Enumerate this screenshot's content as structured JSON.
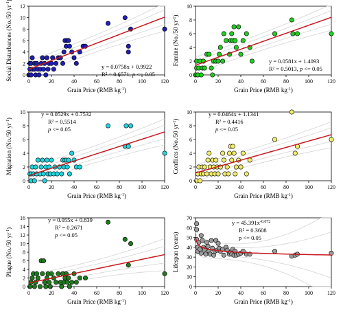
{
  "x_unit_sup": "-1",
  "y_unit_sup": "-1",
  "chart_data": [
    {
      "type": "scatter",
      "xlabel": "Grain Price (RMB kg",
      "ylabel": "Social Disturbances (No./50 yr",
      "xlim": [
        0,
        120
      ],
      "ylim": [
        0,
        12
      ],
      "xticks": [
        0,
        20,
        40,
        60,
        80,
        100,
        120
      ],
      "yticks": [
        0,
        2,
        4,
        6,
        8,
        10,
        12
      ],
      "color": "#1f1fb0",
      "fit": {
        "type": "linear",
        "slope": 0.0758,
        "intercept": 0.9922
      },
      "equation": [
        "y = 0.0758x + 0.9922",
        "R² = 0.6571, p <= 0.05"
      ],
      "points": [
        [
          0,
          0
        ],
        [
          1,
          1
        ],
        [
          1,
          2
        ],
        [
          2,
          0
        ],
        [
          2,
          2
        ],
        [
          3,
          1
        ],
        [
          3,
          3
        ],
        [
          5,
          1
        ],
        [
          5,
          2
        ],
        [
          6,
          0
        ],
        [
          7,
          2
        ],
        [
          8,
          1
        ],
        [
          9,
          0
        ],
        [
          10,
          1
        ],
        [
          11,
          2
        ],
        [
          12,
          3
        ],
        [
          13,
          1
        ],
        [
          14,
          2
        ],
        [
          15,
          0
        ],
        [
          16,
          3
        ],
        [
          17,
          1
        ],
        [
          18,
          2
        ],
        [
          20,
          2
        ],
        [
          21,
          3
        ],
        [
          22,
          1
        ],
        [
          24,
          2
        ],
        [
          26,
          3
        ],
        [
          28,
          3
        ],
        [
          30,
          2
        ],
        [
          31,
          4
        ],
        [
          32,
          6
        ],
        [
          33,
          5
        ],
        [
          34,
          6
        ],
        [
          35,
          6
        ],
        [
          36,
          5
        ],
        [
          38,
          4
        ],
        [
          40,
          3
        ],
        [
          42,
          2
        ],
        [
          45,
          4
        ],
        [
          48,
          5
        ],
        [
          50,
          5
        ],
        [
          70,
          9
        ],
        [
          85,
          10
        ],
        [
          90,
          8
        ],
        [
          88,
          4
        ],
        [
          88,
          5
        ],
        [
          120,
          8
        ]
      ]
    },
    {
      "type": "scatter",
      "xlabel": "Grain Price (RMB kg",
      "ylabel": "Famine (No./50 yr",
      "xlim": [
        0,
        120
      ],
      "ylim": [
        0,
        10
      ],
      "xticks": [
        0,
        20,
        40,
        60,
        80,
        100,
        120
      ],
      "yticks": [
        0,
        2,
        4,
        6,
        8,
        10
      ],
      "color": "#22cc22",
      "fit": {
        "type": "linear",
        "slope": 0.0581,
        "intercept": 1.4093
      },
      "equation": [
        "y = 0.0581x + 1.4093",
        "R² = 0.5013, p <= 0.05"
      ],
      "points": [
        [
          0,
          0
        ],
        [
          1,
          1
        ],
        [
          1,
          2
        ],
        [
          2,
          0
        ],
        [
          3,
          1
        ],
        [
          4,
          2
        ],
        [
          5,
          0
        ],
        [
          6,
          1
        ],
        [
          7,
          2
        ],
        [
          8,
          1
        ],
        [
          10,
          3
        ],
        [
          12,
          3
        ],
        [
          14,
          1
        ],
        [
          15,
          0
        ],
        [
          16,
          2
        ],
        [
          18,
          2
        ],
        [
          20,
          2
        ],
        [
          21,
          3
        ],
        [
          22,
          4
        ],
        [
          24,
          2
        ],
        [
          25,
          6
        ],
        [
          27,
          5
        ],
        [
          30,
          3
        ],
        [
          31,
          5
        ],
        [
          32,
          6
        ],
        [
          33,
          5
        ],
        [
          34,
          7
        ],
        [
          35,
          5
        ],
        [
          36,
          4
        ],
        [
          38,
          7
        ],
        [
          40,
          3
        ],
        [
          42,
          5
        ],
        [
          45,
          6
        ],
        [
          48,
          4
        ],
        [
          50,
          2
        ],
        [
          70,
          6
        ],
        [
          85,
          8
        ],
        [
          86,
          6
        ],
        [
          90,
          6
        ],
        [
          120,
          6
        ]
      ]
    },
    {
      "type": "scatter",
      "xlabel": "Grain Price (RMB kg",
      "ylabel": "Migration (No./50 yr",
      "xlim": [
        0,
        120
      ],
      "ylim": [
        0,
        10
      ],
      "xticks": [
        0,
        20,
        40,
        60,
        80,
        100,
        120
      ],
      "yticks": [
        0,
        2,
        4,
        6,
        8,
        10
      ],
      "color": "#22d4dc",
      "fit": {
        "type": "linear",
        "slope": 0.0529,
        "intercept": 0.7532
      },
      "equation": [
        "y = 0.0529x + 0.7532",
        "R² = 0.5514",
        "p <= 0.05"
      ],
      "points": [
        [
          1,
          1
        ],
        [
          2,
          0
        ],
        [
          2,
          1
        ],
        [
          3,
          2
        ],
        [
          4,
          1
        ],
        [
          5,
          0
        ],
        [
          6,
          2
        ],
        [
          7,
          1
        ],
        [
          8,
          3
        ],
        [
          10,
          1
        ],
        [
          11,
          2
        ],
        [
          12,
          3
        ],
        [
          13,
          1
        ],
        [
          14,
          0
        ],
        [
          15,
          2
        ],
        [
          16,
          3
        ],
        [
          17,
          1
        ],
        [
          18,
          2
        ],
        [
          19,
          1
        ],
        [
          20,
          3
        ],
        [
          22,
          1
        ],
        [
          23,
          2
        ],
        [
          25,
          1
        ],
        [
          27,
          2
        ],
        [
          29,
          1
        ],
        [
          30,
          3
        ],
        [
          31,
          2
        ],
        [
          32,
          3
        ],
        [
          33,
          3
        ],
        [
          34,
          2
        ],
        [
          35,
          3
        ],
        [
          36,
          1
        ],
        [
          38,
          4
        ],
        [
          40,
          3
        ],
        [
          42,
          2
        ],
        [
          45,
          2
        ],
        [
          70,
          8
        ],
        [
          85,
          5
        ],
        [
          86,
          8
        ],
        [
          88,
          5
        ],
        [
          90,
          8
        ],
        [
          120,
          4
        ]
      ]
    },
    {
      "type": "scatter",
      "xlabel": "Grain Price (RMB kg",
      "ylabel": "Conflicts (No./50 yr",
      "xlim": [
        0,
        120
      ],
      "ylim": [
        0,
        10
      ],
      "xticks": [
        0,
        20,
        40,
        60,
        80,
        100,
        120
      ],
      "yticks": [
        0,
        2,
        4,
        6,
        8,
        10
      ],
      "color": "#f2ec6a",
      "fit": {
        "type": "linear",
        "slope": 0.0464,
        "intercept": 1.1341
      },
      "equation": [
        "y = 0.0464x + 1.1341",
        "R² = 0.4416",
        "p <= 0.05"
      ],
      "points": [
        [
          1,
          0
        ],
        [
          2,
          1
        ],
        [
          3,
          2
        ],
        [
          4,
          0
        ],
        [
          5,
          1
        ],
        [
          6,
          2
        ],
        [
          7,
          1
        ],
        [
          8,
          2
        ],
        [
          10,
          1
        ],
        [
          11,
          3
        ],
        [
          12,
          4
        ],
        [
          13,
          2
        ],
        [
          14,
          1
        ],
        [
          15,
          3
        ],
        [
          16,
          2
        ],
        [
          17,
          1
        ],
        [
          18,
          3
        ],
        [
          19,
          2
        ],
        [
          20,
          1
        ],
        [
          22,
          2
        ],
        [
          24,
          4
        ],
        [
          25,
          3
        ],
        [
          26,
          1
        ],
        [
          28,
          2
        ],
        [
          29,
          1
        ],
        [
          30,
          4
        ],
        [
          31,
          5
        ],
        [
          32,
          3
        ],
        [
          33,
          5
        ],
        [
          34,
          4
        ],
        [
          35,
          1
        ],
        [
          36,
          2
        ],
        [
          38,
          3
        ],
        [
          40,
          2
        ],
        [
          42,
          4
        ],
        [
          45,
          1
        ],
        [
          48,
          3
        ],
        [
          70,
          6
        ],
        [
          85,
          10
        ],
        [
          88,
          4
        ],
        [
          90,
          5
        ],
        [
          120,
          6
        ]
      ]
    },
    {
      "type": "scatter",
      "xlabel": "Grain Price (RMB kg",
      "ylabel": "Plague (No./50 yr",
      "xlim": [
        0,
        120
      ],
      "ylim": [
        0,
        16
      ],
      "xticks": [
        0,
        20,
        40,
        60,
        80,
        100,
        120
      ],
      "yticks": [
        0,
        2,
        4,
        6,
        8,
        10,
        12,
        14,
        16
      ],
      "color": "#1e7a1e",
      "fit": {
        "type": "linear",
        "slope": 0.055,
        "intercept": 0.839
      },
      "equation": [
        "y = 0.055x + 0.839",
        "R² = 0.2671",
        "p <= 0.05"
      ],
      "points": [
        [
          1,
          0
        ],
        [
          2,
          1
        ],
        [
          3,
          2
        ],
        [
          4,
          3
        ],
        [
          5,
          0
        ],
        [
          6,
          1
        ],
        [
          7,
          3
        ],
        [
          8,
          2
        ],
        [
          10,
          0
        ],
        [
          11,
          6
        ],
        [
          12,
          3
        ],
        [
          13,
          6
        ],
        [
          14,
          1
        ],
        [
          15,
          0
        ],
        [
          16,
          2
        ],
        [
          17,
          3
        ],
        [
          18,
          1
        ],
        [
          19,
          0
        ],
        [
          20,
          3
        ],
        [
          22,
          2
        ],
        [
          24,
          1
        ],
        [
          26,
          3
        ],
        [
          28,
          1
        ],
        [
          29,
          0
        ],
        [
          30,
          3
        ],
        [
          31,
          1
        ],
        [
          32,
          2
        ],
        [
          33,
          3
        ],
        [
          34,
          1
        ],
        [
          35,
          2
        ],
        [
          36,
          0
        ],
        [
          38,
          1
        ],
        [
          40,
          3
        ],
        [
          42,
          1
        ],
        [
          45,
          2
        ],
        [
          50,
          2
        ],
        [
          70,
          15
        ],
        [
          85,
          11
        ],
        [
          88,
          5
        ],
        [
          90,
          10
        ],
        [
          120,
          3
        ]
      ]
    },
    {
      "type": "scatter",
      "xlabel": "Grain Price (RMB kg",
      "ylabel": "Lifespan (years)",
      "xlim": [
        0,
        120
      ],
      "ylim": [
        0,
        70
      ],
      "xticks": [
        0,
        20,
        40,
        60,
        80,
        100,
        120
      ],
      "yticks": [
        0,
        10,
        20,
        30,
        40,
        50,
        60,
        70
      ],
      "color": "#9a9a9a",
      "fit": {
        "type": "power",
        "a": 45.391,
        "b": -0.072
      },
      "equation": [
        "y = 45.391x",
        "-0.072",
        "R² = 0.3608",
        "p <= 0.05"
      ],
      "points": [
        [
          1,
          64
        ],
        [
          1,
          58
        ],
        [
          1,
          48
        ],
        [
          2,
          40
        ],
        [
          2,
          36
        ],
        [
          3,
          45
        ],
        [
          4,
          38
        ],
        [
          5,
          52
        ],
        [
          5,
          34
        ],
        [
          6,
          47
        ],
        [
          7,
          40
        ],
        [
          8,
          38
        ],
        [
          9,
          33
        ],
        [
          10,
          45
        ],
        [
          11,
          41
        ],
        [
          12,
          36
        ],
        [
          13,
          33
        ],
        [
          14,
          47
        ],
        [
          15,
          39
        ],
        [
          16,
          32
        ],
        [
          17,
          36
        ],
        [
          18,
          47
        ],
        [
          19,
          37
        ],
        [
          20,
          44
        ],
        [
          21,
          39
        ],
        [
          22,
          36
        ],
        [
          24,
          38
        ],
        [
          25,
          32
        ],
        [
          27,
          40
        ],
        [
          28,
          37
        ],
        [
          30,
          33
        ],
        [
          31,
          35
        ],
        [
          32,
          33
        ],
        [
          33,
          38
        ],
        [
          34,
          32
        ],
        [
          35,
          36
        ],
        [
          36,
          32
        ],
        [
          38,
          33
        ],
        [
          40,
          34
        ],
        [
          42,
          36
        ],
        [
          45,
          33
        ],
        [
          48,
          33
        ],
        [
          70,
          36
        ],
        [
          85,
          31
        ],
        [
          88,
          32
        ],
        [
          90,
          33
        ],
        [
          120,
          34
        ]
      ]
    }
  ]
}
